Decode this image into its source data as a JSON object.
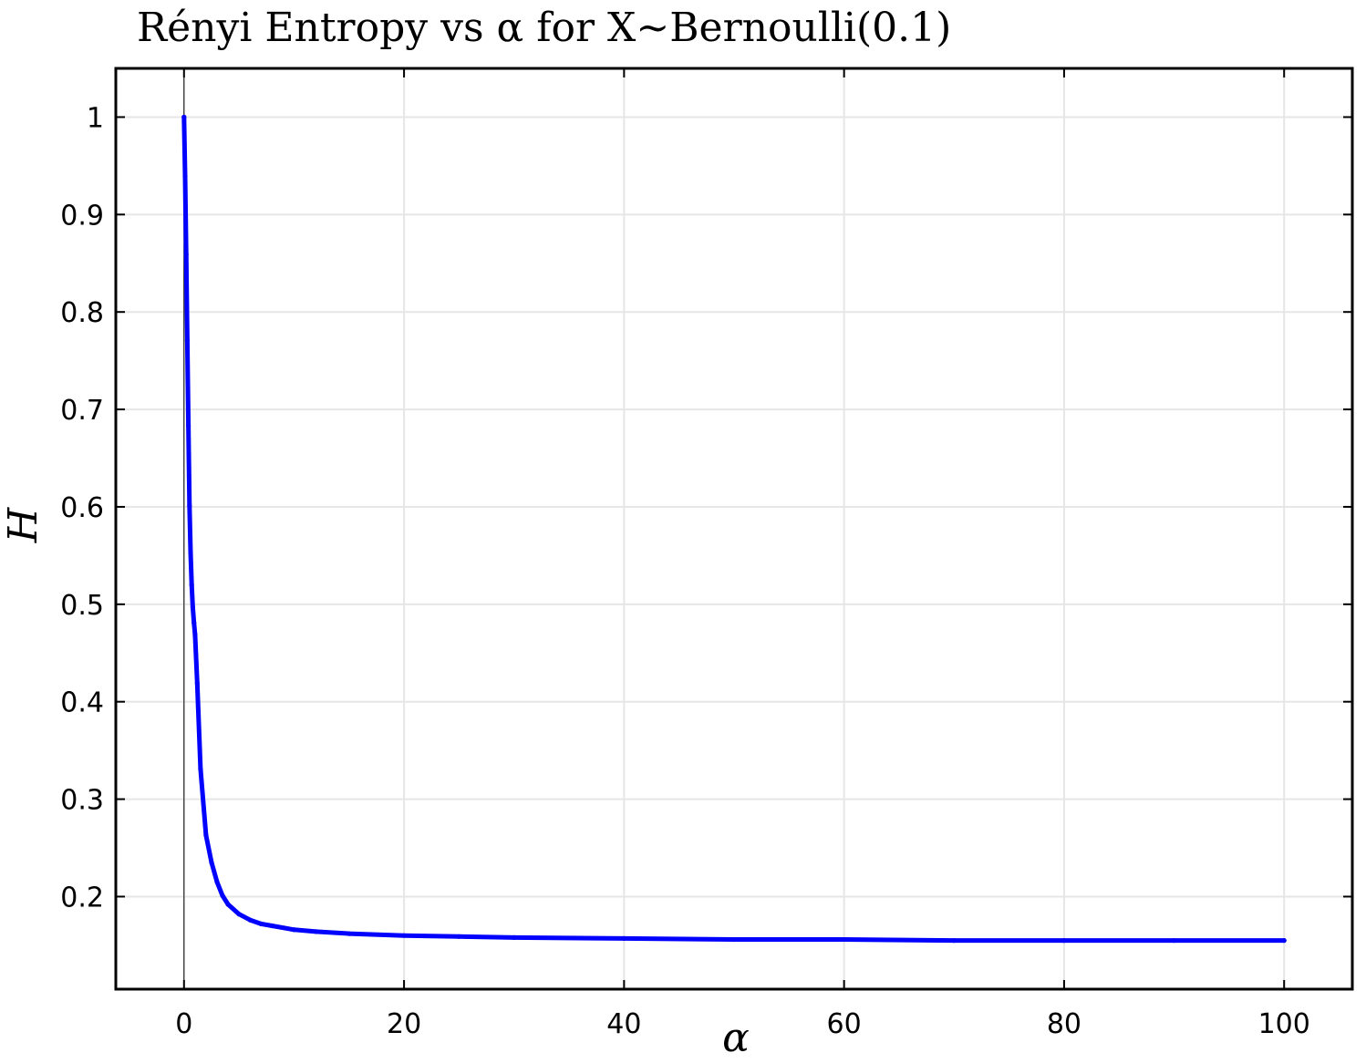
{
  "chart_data": {
    "type": "line",
    "title": "Rényi Entropy vs α for X~Bernoulli(0.1)",
    "xlabel": "α",
    "ylabel": "H",
    "xlim": [
      -6.2,
      106.2
    ],
    "ylim": [
      0.105,
      1.05
    ],
    "xticks": [
      0,
      20,
      40,
      60,
      80,
      100
    ],
    "yticks": [
      0.2,
      0.3,
      0.4,
      0.5,
      0.6,
      0.7,
      0.8,
      0.9,
      1
    ],
    "grid": true,
    "zero_vline": true,
    "line_color": "#0000ff",
    "series": [
      {
        "x": [
          0,
          0.1,
          0.2,
          0.3,
          0.4,
          0.5,
          0.6,
          0.7,
          0.8,
          0.9,
          1.0,
          1.2,
          1.5,
          2,
          2.5,
          3,
          3.5,
          4,
          5,
          6,
          7,
          8,
          10,
          12,
          15,
          20,
          25,
          30,
          40,
          50,
          60,
          70,
          80,
          90,
          100
        ],
        "y": [
          1.0,
          0.939,
          0.859,
          0.771,
          0.683,
          0.601,
          0.553,
          0.52,
          0.497,
          0.481,
          0.469,
          0.419,
          0.331,
          0.263,
          0.235,
          0.215,
          0.201,
          0.192,
          0.182,
          0.176,
          0.172,
          0.17,
          0.166,
          0.164,
          0.162,
          0.16,
          0.159,
          0.158,
          0.157,
          0.156,
          0.156,
          0.155,
          0.155,
          0.155,
          0.155
        ]
      }
    ]
  }
}
